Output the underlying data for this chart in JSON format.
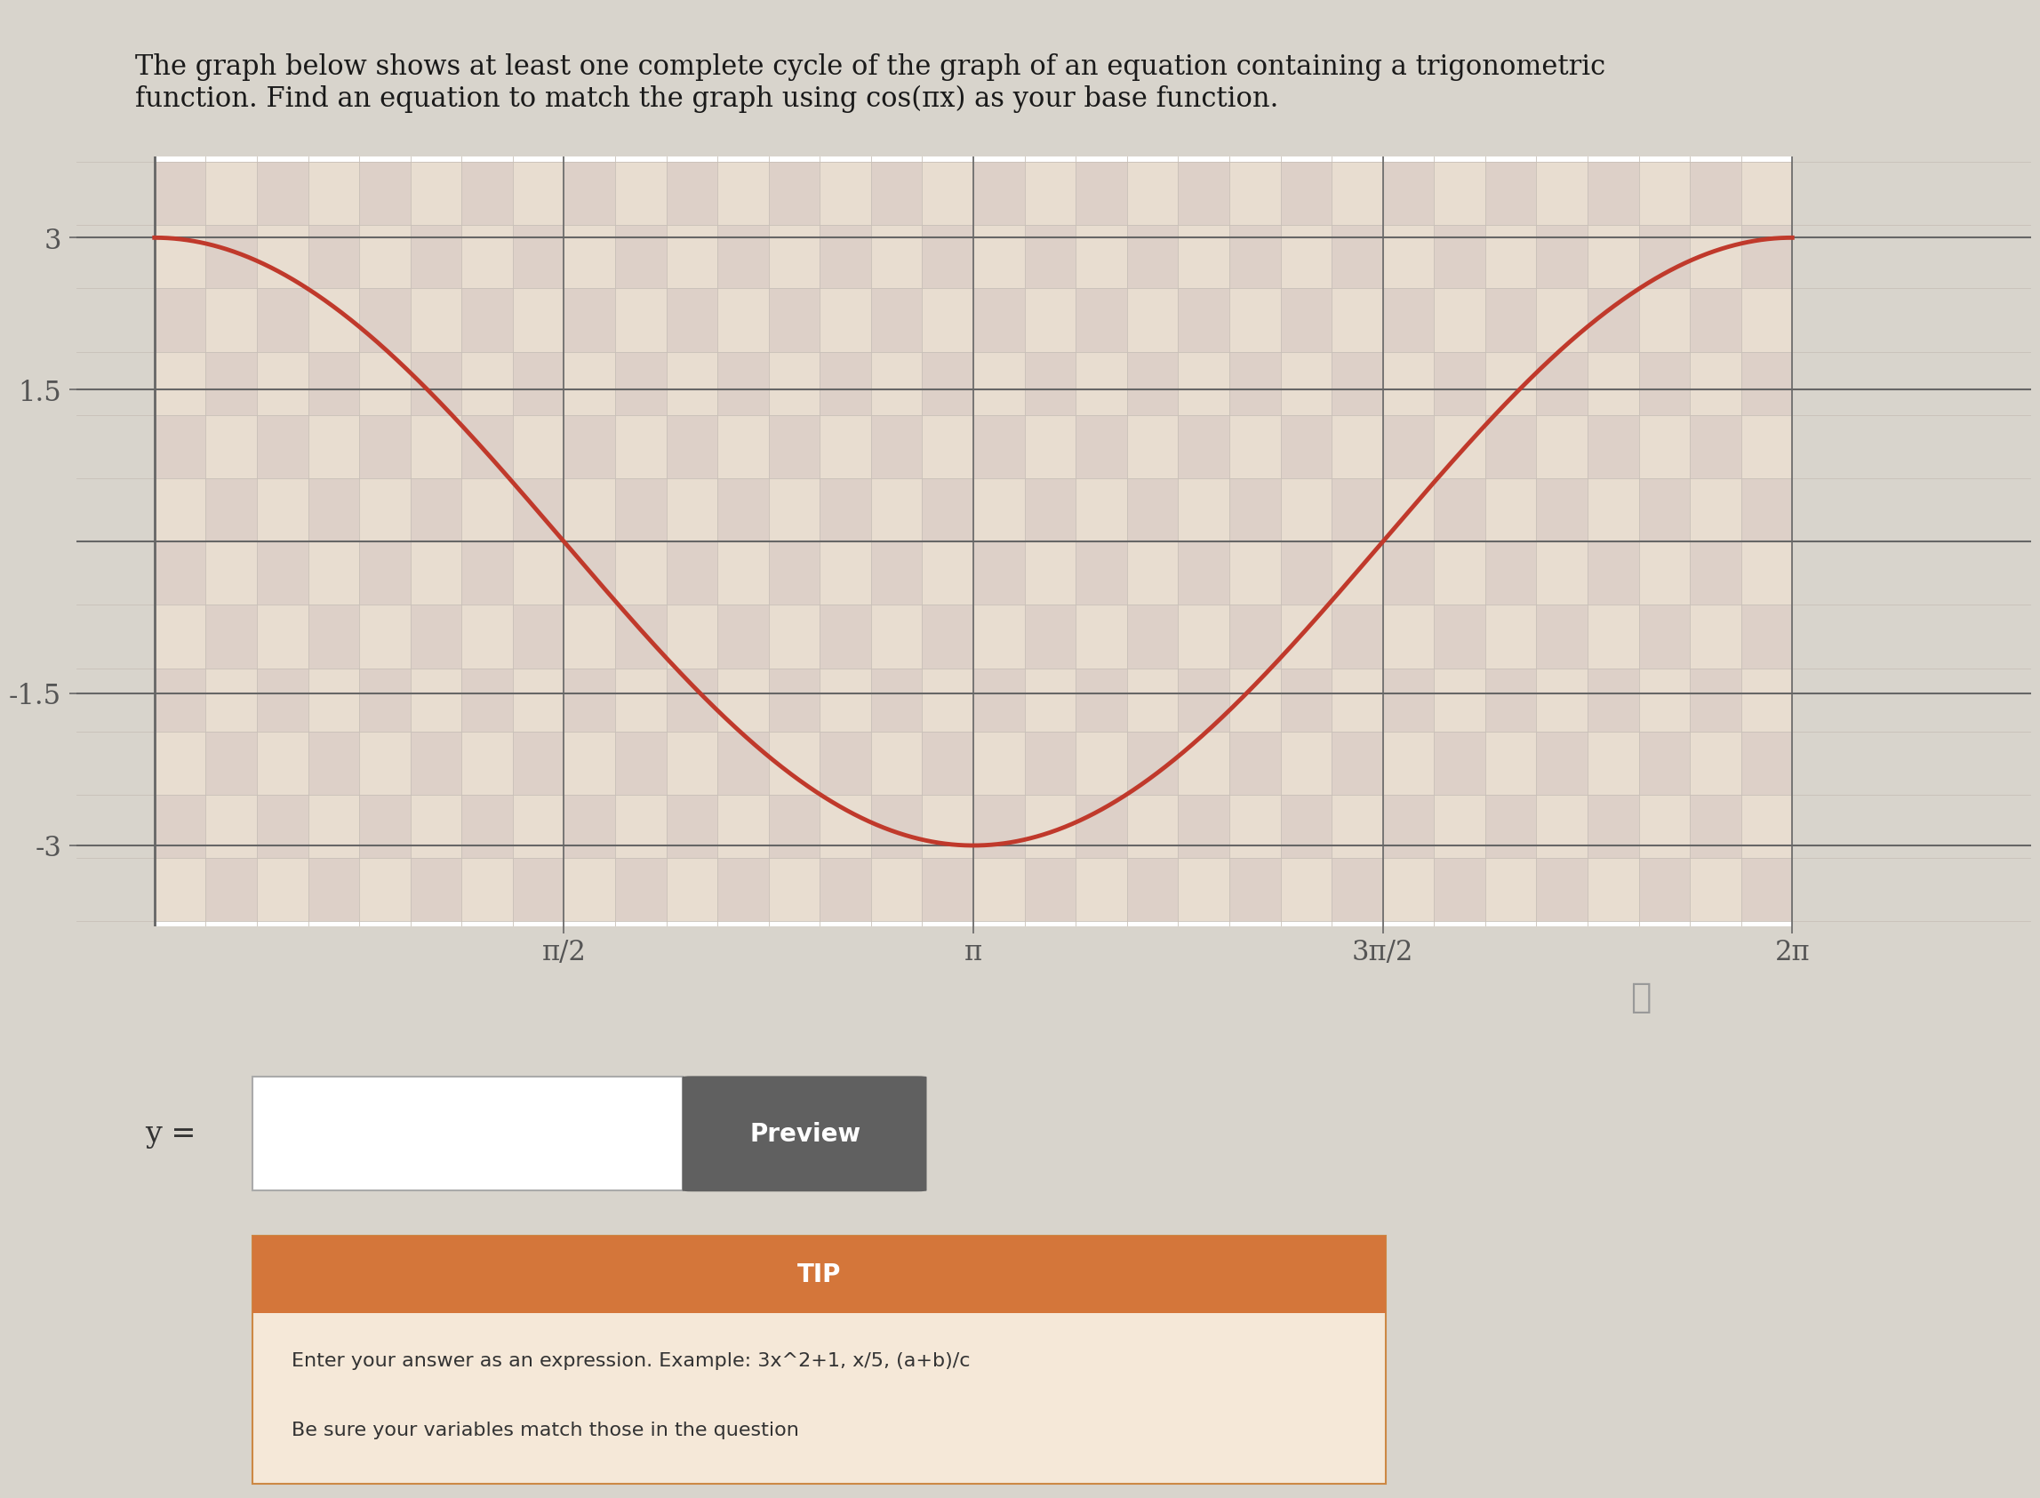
{
  "amplitude": 3,
  "x_ticks": [
    1.5707963267948966,
    3.141592653589793,
    4.71238898038469,
    6.283185307179586
  ],
  "x_tick_labels": [
    "π/2",
    "π",
    "3π/2",
    "2π"
  ],
  "y_ticks": [
    -3,
    -1.5,
    1.5,
    3
  ],
  "y_tick_labels": [
    "-3",
    "-1.5",
    "1.5",
    "3"
  ],
  "ylim": [
    -3.8,
    3.8
  ],
  "xlim": [
    -0.3,
    7.2
  ],
  "curve_color": "#c0392b",
  "curve_linewidth": 3.5,
  "grid_bg_color1": "#e8ddd0",
  "grid_bg_color2": "#ddd0c8",
  "grid_line_color": "#c8c0b8",
  "grid_major_color": "#b8b0a8",
  "axis_color": "#666666",
  "tick_label_color": "#555555",
  "tick_fontsize": 22,
  "title_fontsize": 22,
  "fig_bg_color": "#d8d4cc",
  "plot_bg_color": "#e0dbd2",
  "grid_cols": 32,
  "grid_rows": 12,
  "tip_header_color": "#d4763a",
  "tip_bg_color": "#f5e8d8",
  "tip_border_color": "#cc8844",
  "preview_btn_color": "#606060"
}
